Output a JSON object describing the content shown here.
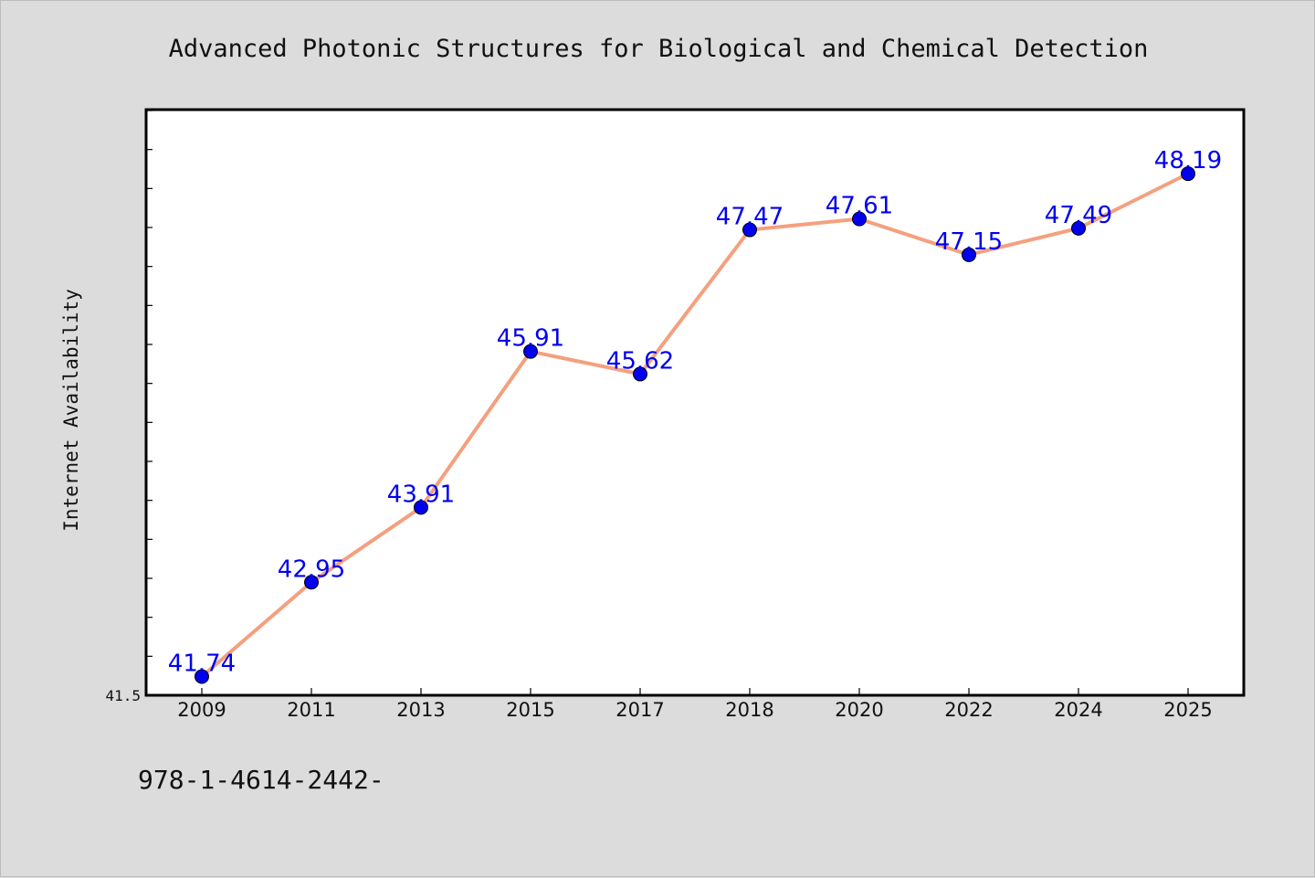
{
  "chart_data": {
    "type": "line",
    "title": "Advanced Photonic Structures for Biological and Chemical Detection",
    "xlabel": "",
    "ylabel": "Internet Availability",
    "categories": [
      "2009",
      "2011",
      "2013",
      "2015",
      "2017",
      "2018",
      "2020",
      "2022",
      "2024",
      "2025"
    ],
    "series": [
      {
        "values": [
          41.74,
          42.95,
          43.91,
          45.91,
          45.62,
          47.47,
          47.61,
          47.15,
          47.49,
          48.19
        ]
      }
    ],
    "data_labels": [
      "41.74",
      "42.95",
      "43.91",
      "45.91",
      "45.62",
      "47.47",
      "47.61",
      "47.15",
      "47.49",
      "48.19"
    ],
    "yticks": [
      "41.5"
    ],
    "ylim": [
      41.5,
      49.0
    ],
    "grid": false,
    "legend": "none",
    "colors": {
      "line": "#f4a07e",
      "marker": "#0000ee",
      "label": "#0000ee",
      "plot_background": "#ffffff",
      "page_background": "#dcdcdc"
    }
  },
  "footer": {
    "text": "978-1-4614-2442-"
  }
}
